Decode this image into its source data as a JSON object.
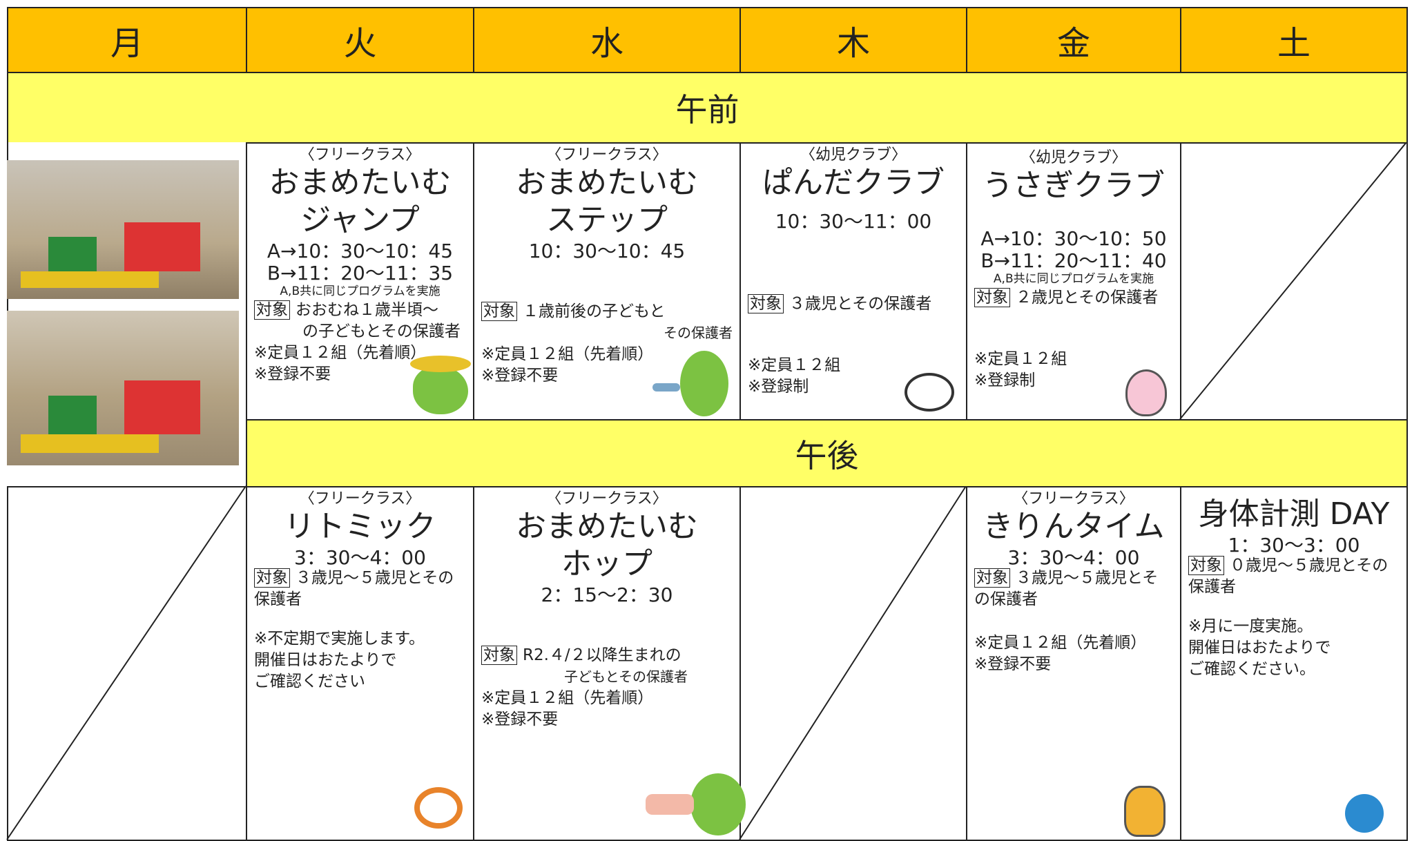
{
  "header": {
    "days": [
      "月",
      "火",
      "水",
      "木",
      "金",
      "土"
    ]
  },
  "sections": {
    "morning": "午前",
    "afternoon": "午後"
  },
  "morning": {
    "tue": {
      "category": "〈フリークラス〉",
      "title": [
        "おまめたいむ",
        "ジャンプ"
      ],
      "times": [
        "A→10：30〜10：45",
        "B→11：20〜11：35"
      ],
      "program_note": "A,B共に同じプログラムを実施",
      "target_label": "対象",
      "target": [
        "おおむね１歳半頃〜",
        "の子どもとその保護者"
      ],
      "notes": [
        "※定員１２組（先着順）",
        "※登録不要"
      ]
    },
    "wed": {
      "category": "〈フリークラス〉",
      "title": [
        "おまめたいむ",
        "ステップ"
      ],
      "times": [
        "10：30〜10：45"
      ],
      "target_label": "対象",
      "target": [
        "１歳前後の子どもと",
        "その保護者"
      ],
      "notes": [
        "※定員１２組（先着順）",
        "※登録不要"
      ]
    },
    "thu": {
      "category": "〈幼児クラブ〉",
      "title": [
        "ぱんだクラブ"
      ],
      "times": [
        "10：30〜11：00"
      ],
      "target_label": "対象",
      "target": [
        "３歳児とその保護者"
      ],
      "notes": [
        "※定員１２組",
        "※登録制"
      ]
    },
    "fri": {
      "category": "〈幼児クラブ〉",
      "title": [
        "うさぎクラブ"
      ],
      "times": [
        "A→10：30〜10：50",
        "B→11：20〜11：40"
      ],
      "program_note": "A,B共に同じプログラムを実施",
      "target_label": "対象",
      "target": [
        "２歳児とその保護者"
      ],
      "notes": [
        "※定員１２組",
        "※登録制"
      ]
    }
  },
  "afternoon": {
    "tue": {
      "category": "〈フリークラス〉",
      "title": [
        "リトミック"
      ],
      "times": [
        "3：30〜4：00"
      ],
      "target_label": "対象",
      "target": [
        "３歳児〜５歳児とその保護者"
      ],
      "notes": [
        "※不定期で実施します。",
        "開催日はおたよりで",
        "ご確認ください"
      ]
    },
    "wed": {
      "category": "〈フリークラス〉",
      "title": [
        "おまめたいむ",
        "ホップ"
      ],
      "times": [
        "2：15〜2：30"
      ],
      "target_label": "対象",
      "target": [
        "R2.４/２以降生まれの",
        "子どもとその保護者"
      ],
      "notes": [
        "※定員１２組（先着順）",
        "※登録不要"
      ]
    },
    "fri": {
      "category": "〈フリークラス〉",
      "title": [
        "きりんタイム"
      ],
      "times": [
        "3：30〜4：00"
      ],
      "target_label": "対象",
      "target": [
        "３歳児〜５歳児とその保護者"
      ],
      "notes": [
        "※定員１２組（先着順）",
        "※登録不要"
      ]
    },
    "sat": {
      "title": [
        "身体計測 DAY"
      ],
      "times": [
        "1：30〜3：00"
      ],
      "target_label": "対象",
      "target": [
        "０歳児〜５歳児とその保護者"
      ],
      "notes": [
        "※月に一度実施。",
        "開催日はおたよりで",
        "ご確認ください。"
      ]
    }
  }
}
